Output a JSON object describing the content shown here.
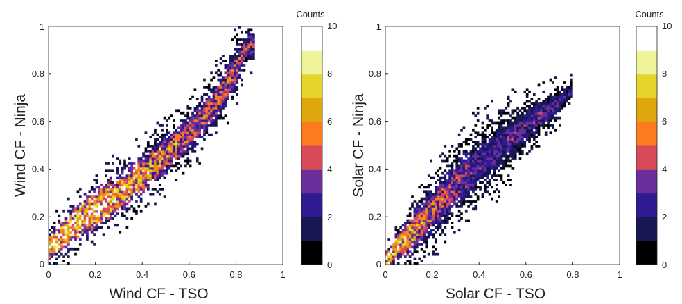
{
  "chart_data": [
    {
      "type": "heatmap",
      "title": "",
      "xlabel": "Wind CF - TSO",
      "ylabel": "Wind CF - Ninja",
      "xlim": [
        0,
        1
      ],
      "ylim": [
        0,
        1
      ],
      "xticks": [
        "0",
        "0.2",
        "0.4",
        "0.6",
        "0.8",
        "1"
      ],
      "yticks": [
        "0",
        "0.2",
        "0.4",
        "0.6",
        "0.8",
        "1"
      ],
      "colorbar": {
        "title": "Counts",
        "range": [
          0,
          10
        ],
        "ticks": [
          "0",
          "2",
          "4",
          "6",
          "8",
          "10"
        ]
      },
      "bin_width": 0.01,
      "density_ridge": {
        "x": [
          0.0,
          0.1,
          0.2,
          0.3,
          0.4,
          0.5,
          0.6,
          0.7,
          0.8,
          0.85
        ],
        "y": [
          0.07,
          0.16,
          0.23,
          0.3,
          0.37,
          0.46,
          0.55,
          0.66,
          0.82,
          0.92
        ]
      },
      "spread": [
        0.05,
        0.07,
        0.08,
        0.08,
        0.08,
        0.08,
        0.08,
        0.08,
        0.08,
        0.06
      ],
      "peak_counts": [
        10,
        10,
        10,
        9,
        8,
        7,
        6,
        6,
        6,
        5
      ],
      "x_range": [
        0.0,
        0.88
      ]
    },
    {
      "type": "heatmap",
      "title": "",
      "xlabel": "Solar CF - TSO",
      "ylabel": "Solar CF - Ninja",
      "xlim": [
        0,
        1
      ],
      "ylim": [
        0,
        1
      ],
      "xticks": [
        "0",
        "0.2",
        "0.4",
        "0.6",
        "0.8",
        "1"
      ],
      "yticks": [
        "0",
        "0.2",
        "0.4",
        "0.6",
        "0.8",
        "1"
      ],
      "colorbar": {
        "title": "Counts",
        "range": [
          0,
          10
        ],
        "ticks": [
          "0",
          "2",
          "4",
          "6",
          "8",
          "10"
        ]
      },
      "bin_width": 0.01,
      "density_ridge": {
        "x": [
          0.0,
          0.1,
          0.2,
          0.3,
          0.4,
          0.5,
          0.6,
          0.7,
          0.8
        ],
        "y": [
          0.02,
          0.12,
          0.23,
          0.33,
          0.42,
          0.5,
          0.58,
          0.65,
          0.73
        ]
      },
      "spread": [
        0.03,
        0.07,
        0.1,
        0.11,
        0.11,
        0.1,
        0.08,
        0.06,
        0.03
      ],
      "peak_counts": [
        10,
        8,
        6,
        5,
        4,
        4,
        4,
        4,
        3
      ],
      "x_range": [
        0.0,
        0.8
      ]
    }
  ],
  "colormap": [
    "#000000",
    "#171752",
    "#2e1a92",
    "#6a2f9a",
    "#d84a5a",
    "#fe7a1f",
    "#dda70d",
    "#e6d42b",
    "#eef39a",
    "#ffffff"
  ]
}
